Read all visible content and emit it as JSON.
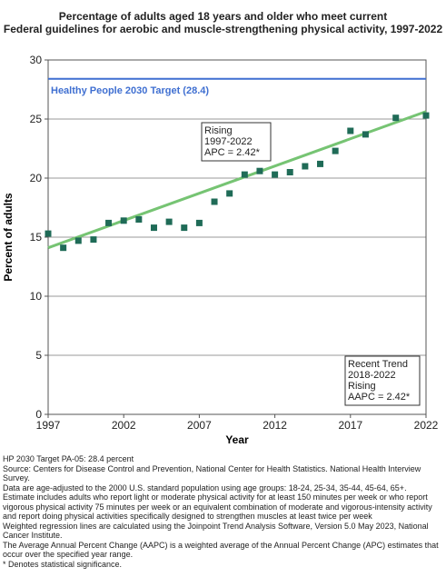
{
  "chart_data": {
    "type": "scatter",
    "title_lines": [
      "Percentage of adults aged 18 years and older who meet current",
      "Federal guidelines for aerobic and muscle-strengthening physical activity, 1997-2022"
    ],
    "xlabel": "Year",
    "ylabel": "Percent of adults",
    "xlim": [
      1997,
      2022
    ],
    "ylim": [
      0,
      30
    ],
    "x_ticks": [
      1997,
      2002,
      2007,
      2012,
      2017,
      2022
    ],
    "y_ticks": [
      0,
      5,
      10,
      15,
      20,
      25,
      30
    ],
    "grid": "horizontal",
    "points": [
      {
        "x": 1997,
        "y": 15.3
      },
      {
        "x": 1998,
        "y": 14.1
      },
      {
        "x": 1999,
        "y": 14.7
      },
      {
        "x": 2000,
        "y": 14.8
      },
      {
        "x": 2001,
        "y": 16.2
      },
      {
        "x": 2002,
        "y": 16.4
      },
      {
        "x": 2003,
        "y": 16.5
      },
      {
        "x": 2004,
        "y": 15.8
      },
      {
        "x": 2005,
        "y": 16.3
      },
      {
        "x": 2006,
        "y": 15.8
      },
      {
        "x": 2007,
        "y": 16.2
      },
      {
        "x": 2008,
        "y": 18.0
      },
      {
        "x": 2009,
        "y": 18.7
      },
      {
        "x": 2010,
        "y": 20.3
      },
      {
        "x": 2011,
        "y": 20.6
      },
      {
        "x": 2012,
        "y": 20.3
      },
      {
        "x": 2013,
        "y": 20.5
      },
      {
        "x": 2014,
        "y": 21.0
      },
      {
        "x": 2015,
        "y": 21.2
      },
      {
        "x": 2016,
        "y": 22.3
      },
      {
        "x": 2017,
        "y": 24.0
      },
      {
        "x": 2018,
        "y": 23.7
      },
      {
        "x": 2020,
        "y": 25.1
      },
      {
        "x": 2022,
        "y": 25.3
      }
    ],
    "trend_line": {
      "x_start": 1997,
      "x_end": 2022,
      "y_start": 14.1,
      "apc": 2.42,
      "color": "#76c473"
    },
    "target_line": {
      "value": 28.4,
      "label": "Healthy People 2030 Target (28.4)",
      "color": "#3f6fd1"
    },
    "marker_color": "#1f6b57",
    "annotations": [
      {
        "id": "rising",
        "lines": [
          "Rising",
          "1997-2022",
          "APC =  2.42*"
        ]
      },
      {
        "id": "recent",
        "lines": [
          "Recent Trend",
          "2018-2022",
          "Rising",
          "AAPC =  2.42*"
        ]
      }
    ]
  },
  "notes": [
    "HP 2030 Target PA-05: 28.4 percent",
    "Source: Centers for Disease Control and Prevention, National Center for Health Statistics. National Health Interview Survey.",
    "Data are age-adjusted to the 2000 U.S. standard population using age groups: 18-24, 25-34, 35-44, 45-64, 65+.",
    "Estimate includes adults who report light or moderate physical activity for at least 150 minutes per week or who report vigorous physical activity 75 minutes per week or an equivalent combination of moderate and vigorous-intensity activity and report doing physical activities specifically designed to strengthen muscles at least twice per week",
    "Weighted regression lines are calculated using the Joinpoint Trend Analysis Software, Version 5.0 May 2023, National Cancer Institute.",
    "The Average Annual Percent Change (AAPC) is a weighted average of the Annual Percent Change (APC) estimates that occur over the specified year range.",
    "* Denotes statistical significance."
  ]
}
